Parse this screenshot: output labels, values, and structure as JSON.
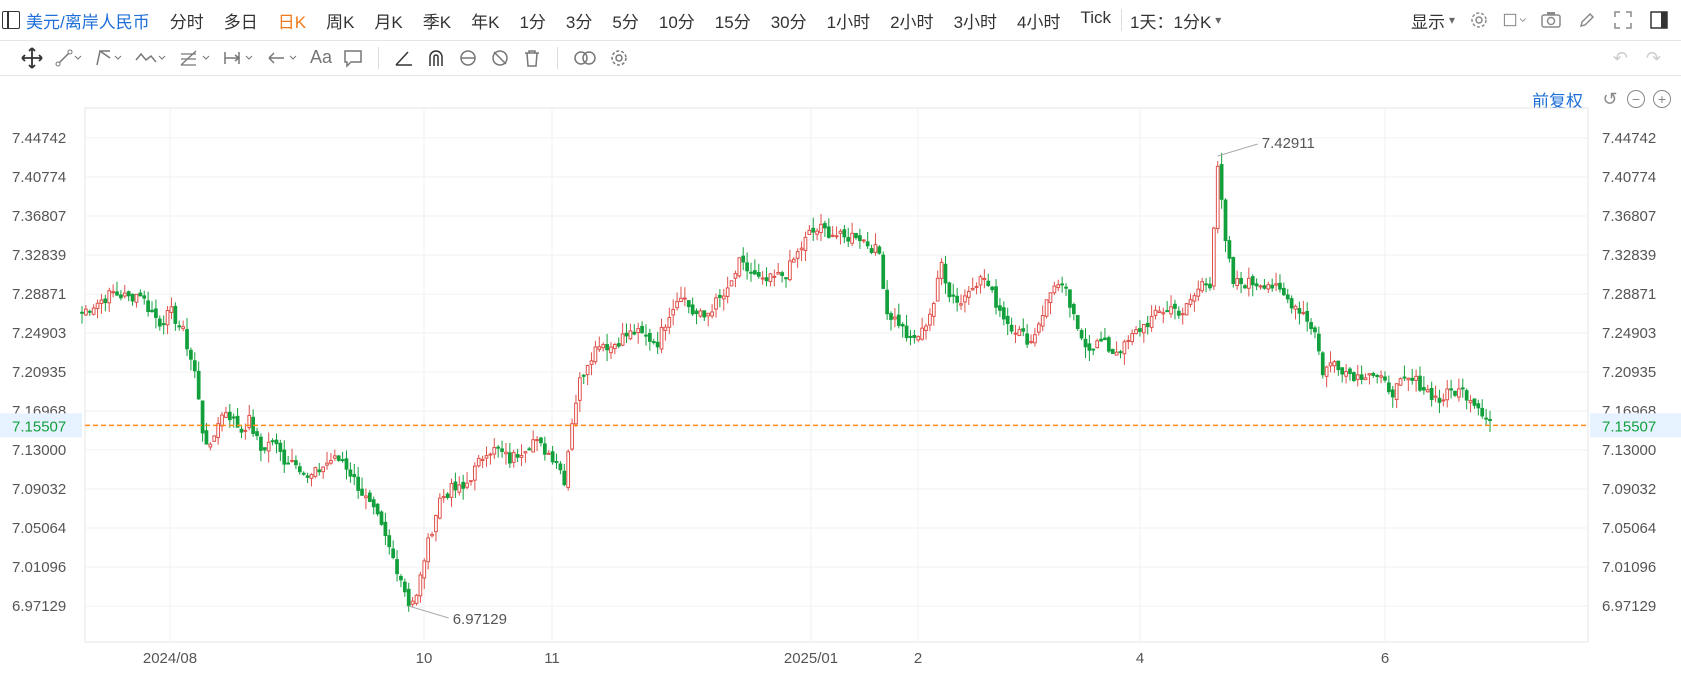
{
  "header": {
    "symbol": "美元/离岸人民币",
    "periods": [
      "分时",
      "多日",
      "日K",
      "周K",
      "月K",
      "季K",
      "年K",
      "1分",
      "3分",
      "5分",
      "10分",
      "15分",
      "30分",
      "1小时",
      "2小时",
      "3小时",
      "4小时",
      "Tick"
    ],
    "active_period": "日K",
    "range_label": "1天：1分K",
    "display_label": "显示"
  },
  "adjust_label": "前复权",
  "colors": {
    "up": "#e0504a",
    "down": "#12a03c",
    "accent": "#1e6fd9",
    "active": "#f07b1c",
    "current_line": "#ff8c1a"
  },
  "chart_data": {
    "type": "candlestick",
    "y_ticks": [
      "7.44742",
      "7.40774",
      "7.36807",
      "7.32839",
      "7.28871",
      "7.24903",
      "7.20935",
      "7.16968",
      "7.13000",
      "7.09032",
      "7.05064",
      "7.01096",
      "6.97129"
    ],
    "x_ticks": [
      "2024/08",
      "10",
      "11",
      "2025/01",
      "2",
      "4",
      "6"
    ],
    "current_price": "7.15507",
    "max_label": "7.42911",
    "min_label": "6.97129",
    "ylim": [
      6.95,
      7.47
    ],
    "keypoints": [
      [
        0,
        7.27
      ],
      [
        8,
        7.29
      ],
      [
        12,
        7.285
      ],
      [
        15,
        7.29
      ],
      [
        17,
        7.275
      ],
      [
        20,
        7.26
      ],
      [
        23,
        7.27
      ],
      [
        26,
        7.25
      ],
      [
        29,
        7.21
      ],
      [
        31,
        7.15
      ],
      [
        33,
        7.13
      ],
      [
        35,
        7.16
      ],
      [
        37,
        7.17
      ],
      [
        39,
        7.16
      ],
      [
        41,
        7.15
      ],
      [
        43,
        7.16
      ],
      [
        46,
        7.13
      ],
      [
        49,
        7.14
      ],
      [
        52,
        7.12
      ],
      [
        55,
        7.12
      ],
      [
        58,
        7.1
      ],
      [
        61,
        7.11
      ],
      [
        64,
        7.12
      ],
      [
        67,
        7.12
      ],
      [
        70,
        7.1
      ],
      [
        73,
        7.08
      ],
      [
        76,
        7.06
      ],
      [
        79,
        7.03
      ],
      [
        82,
        7.0
      ],
      [
        84,
        6.975
      ],
      [
        86,
        6.98
      ],
      [
        88,
        7.02
      ],
      [
        90,
        7.05
      ],
      [
        92,
        7.08
      ],
      [
        95,
        7.09
      ],
      [
        98,
        7.09
      ],
      [
        101,
        7.11
      ],
      [
        104,
        7.13
      ],
      [
        107,
        7.13
      ],
      [
        110,
        7.12
      ],
      [
        113,
        7.13
      ],
      [
        116,
        7.14
      ],
      [
        119,
        7.13
      ],
      [
        122,
        7.12
      ],
      [
        124,
        7.1
      ],
      [
        126,
        7.16
      ],
      [
        128,
        7.2
      ],
      [
        130,
        7.22
      ],
      [
        133,
        7.24
      ],
      [
        136,
        7.235
      ],
      [
        139,
        7.245
      ],
      [
        142,
        7.25
      ],
      [
        145,
        7.245
      ],
      [
        148,
        7.24
      ],
      [
        151,
        7.27
      ],
      [
        154,
        7.29
      ],
      [
        157,
        7.27
      ],
      [
        160,
        7.265
      ],
      [
        163,
        7.28
      ],
      [
        166,
        7.29
      ],
      [
        169,
        7.32
      ],
      [
        172,
        7.31
      ],
      [
        175,
        7.3
      ],
      [
        178,
        7.305
      ],
      [
        181,
        7.31
      ],
      [
        184,
        7.33
      ],
      [
        187,
        7.35
      ],
      [
        190,
        7.355
      ],
      [
        193,
        7.35
      ],
      [
        196,
        7.345
      ],
      [
        199,
        7.35
      ],
      [
        202,
        7.34
      ],
      [
        205,
        7.33
      ],
      [
        207,
        7.27
      ],
      [
        210,
        7.26
      ],
      [
        213,
        7.24
      ],
      [
        216,
        7.25
      ],
      [
        219,
        7.28
      ],
      [
        221,
        7.32
      ],
      [
        223,
        7.29
      ],
      [
        226,
        7.28
      ],
      [
        229,
        7.3
      ],
      [
        232,
        7.305
      ],
      [
        235,
        7.28
      ],
      [
        238,
        7.26
      ],
      [
        241,
        7.25
      ],
      [
        244,
        7.24
      ],
      [
        247,
        7.27
      ],
      [
        250,
        7.3
      ],
      [
        253,
        7.29
      ],
      [
        256,
        7.25
      ],
      [
        259,
        7.235
      ],
      [
        262,
        7.24
      ],
      [
        265,
        7.23
      ],
      [
        268,
        7.235
      ],
      [
        271,
        7.25
      ],
      [
        274,
        7.26
      ],
      [
        277,
        7.27
      ],
      [
        280,
        7.275
      ],
      [
        283,
        7.27
      ],
      [
        285,
        7.28
      ],
      [
        288,
        7.3
      ],
      [
        290,
        7.3
      ],
      [
        292,
        7.42
      ],
      [
        294,
        7.34
      ],
      [
        296,
        7.3
      ],
      [
        299,
        7.3
      ],
      [
        302,
        7.3
      ],
      [
        305,
        7.3
      ],
      [
        308,
        7.29
      ],
      [
        311,
        7.28
      ],
      [
        314,
        7.27
      ],
      [
        317,
        7.25
      ],
      [
        319,
        7.21
      ],
      [
        322,
        7.22
      ],
      [
        325,
        7.21
      ],
      [
        328,
        7.205
      ],
      [
        331,
        7.21
      ],
      [
        334,
        7.2
      ],
      [
        337,
        7.19
      ],
      [
        340,
        7.2
      ],
      [
        343,
        7.2
      ],
      [
        346,
        7.19
      ],
      [
        349,
        7.18
      ],
      [
        352,
        7.19
      ],
      [
        355,
        7.19
      ],
      [
        358,
        7.18
      ],
      [
        360,
        7.17
      ],
      [
        362,
        7.16
      ]
    ]
  }
}
